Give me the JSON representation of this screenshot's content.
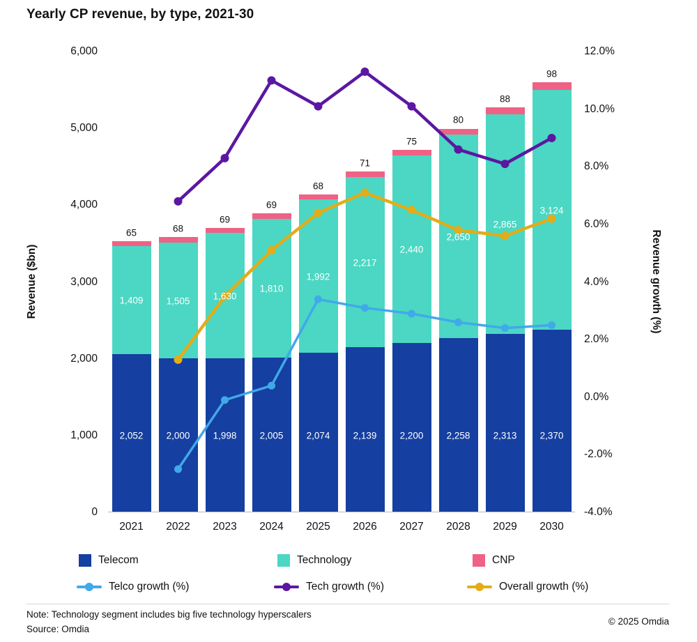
{
  "title": "Yearly CP revenue, by type, 2021-30",
  "chart_data": {
    "type": "bar",
    "subtype": "stacked-bars-with-growth-lines",
    "categories": [
      "2021",
      "2022",
      "2023",
      "2024",
      "2025",
      "2026",
      "2027",
      "2028",
      "2029",
      "2030"
    ],
    "bar_series": [
      {
        "name": "Telecom",
        "color": "#153fa0",
        "values": [
          2052,
          2000,
          1998,
          2005,
          2074,
          2139,
          2200,
          2258,
          2313,
          2370
        ]
      },
      {
        "name": "Technology",
        "color": "#4bd7c3",
        "values": [
          1409,
          1505,
          1630,
          1810,
          1992,
          2217,
          2440,
          2650,
          2865,
          3124
        ]
      },
      {
        "name": "CNP",
        "color": "#ef6185",
        "values": [
          65,
          68,
          69,
          69,
          68,
          71,
          75,
          80,
          88,
          98
        ]
      }
    ],
    "line_series": [
      {
        "name": "Telco growth (%)",
        "color": "#41a8ea",
        "start_index": 1,
        "stroke_width": 3.5,
        "dot_radius": 5.5,
        "values": [
          -2.5,
          -0.1,
          0.4,
          3.4,
          3.1,
          2.9,
          2.6,
          2.4,
          2.5
        ]
      },
      {
        "name": "Tech growth (%)",
        "color": "#5b17a1",
        "start_index": 1,
        "stroke_width": 4.5,
        "dot_radius": 6,
        "values": [
          6.8,
          8.3,
          11.0,
          10.1,
          11.3,
          10.1,
          8.6,
          8.1,
          9.0
        ]
      },
      {
        "name": "Overall growth (%)",
        "color": "#e3ac18",
        "start_index": 1,
        "stroke_width": 4.5,
        "dot_radius": 6,
        "values": [
          1.3,
          3.5,
          5.1,
          6.4,
          7.1,
          6.5,
          5.8,
          5.6,
          6.2
        ]
      }
    ],
    "left_axis": {
      "label": "Revenue ($bn)",
      "min": 0,
      "max": 6000,
      "tick_step": 1000
    },
    "right_axis": {
      "label": "Revenue growth (%)",
      "min": -4,
      "max": 12,
      "tick_step": 2
    },
    "grid": "none",
    "legend_position": "bottom"
  },
  "notes": {
    "note": "Note: Technology segment includes big five technology hyperscalers",
    "source": "Source: Omdia",
    "copyright": "© 2025 Omdia"
  }
}
